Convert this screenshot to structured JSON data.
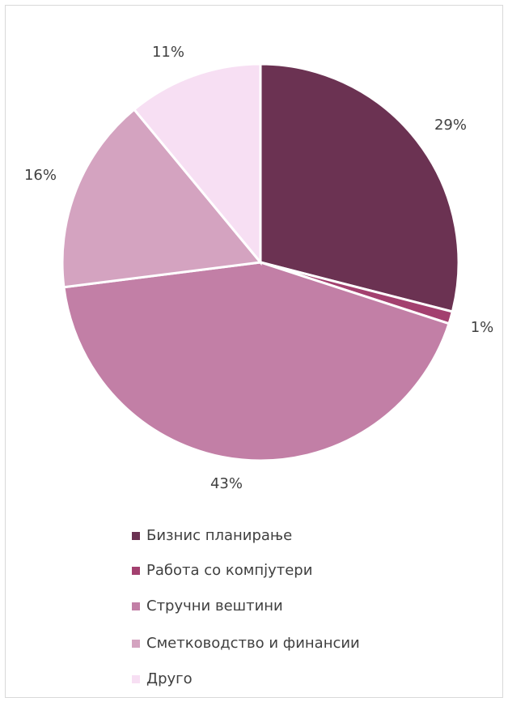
{
  "chart_data": {
    "type": "pie",
    "categories": [
      "Бизнис планирање",
      "Работа со компјутери",
      "Стручни вештини",
      "Сметководство и финансии",
      "Друго"
    ],
    "values": [
      29,
      1,
      43,
      16,
      11
    ],
    "value_labels": [
      "29%",
      "1%",
      "43%",
      "16%",
      "11%"
    ],
    "colors": [
      "#6b3252",
      "#a3406f",
      "#c27fa6",
      "#d4a3c0",
      "#f7dff3"
    ],
    "legend": "bottom"
  }
}
